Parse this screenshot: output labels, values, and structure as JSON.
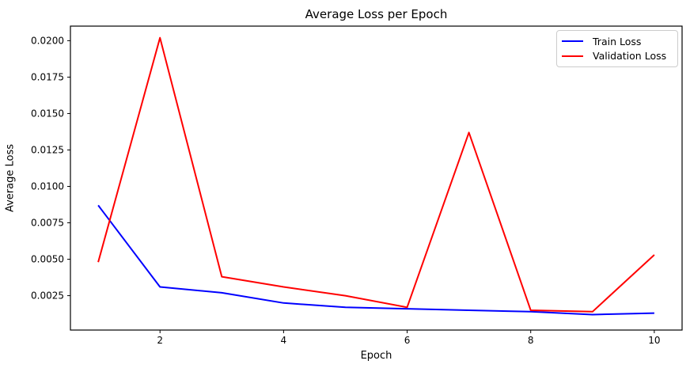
{
  "figure": {
    "title": "Average Loss per Epoch",
    "xlabel": "Epoch",
    "ylabel": "Average Loss"
  },
  "legend": {
    "position": "upper-right",
    "entries": [
      {
        "label": "Train Loss",
        "color": "#0000ff"
      },
      {
        "label": "Validation Loss",
        "color": "#ff0000"
      }
    ]
  },
  "colors": {
    "axis": "#000000",
    "background": "#ffffff",
    "legend_border": "#cccccc",
    "train_loss": "#0000ff",
    "validation_loss": "#ff0000"
  },
  "chart_data": {
    "type": "line",
    "title": "Average Loss per Epoch",
    "xlabel": "Epoch",
    "ylabel": "Average Loss",
    "x": [
      1,
      2,
      3,
      4,
      5,
      6,
      7,
      8,
      9,
      10
    ],
    "series": [
      {
        "name": "Train Loss",
        "color": "#0000ff",
        "values": [
          0.0087,
          0.0031,
          0.0027,
          0.002,
          0.0017,
          0.0016,
          0.0015,
          0.0014,
          0.0012,
          0.0013
        ]
      },
      {
        "name": "Validation Loss",
        "color": "#ff0000",
        "values": [
          0.0048,
          0.0202,
          0.0038,
          0.0031,
          0.0025,
          0.0017,
          0.0137,
          0.0015,
          0.0014,
          0.0053
        ]
      }
    ],
    "xlim": [
      0.55,
      10.45
    ],
    "ylim": [
      0.00014,
      0.021
    ],
    "xticks": [
      2,
      4,
      6,
      8,
      10
    ],
    "xtick_labels": [
      "2",
      "4",
      "6",
      "8",
      "10"
    ],
    "yticks": [
      0.0025,
      0.005,
      0.0075,
      0.01,
      0.0125,
      0.015,
      0.0175,
      0.02
    ],
    "ytick_labels": [
      "0.0025",
      "0.0050",
      "0.0075",
      "0.0100",
      "0.0125",
      "0.0150",
      "0.0175",
      "0.0200"
    ],
    "grid": false,
    "legend_position": "upper right"
  }
}
